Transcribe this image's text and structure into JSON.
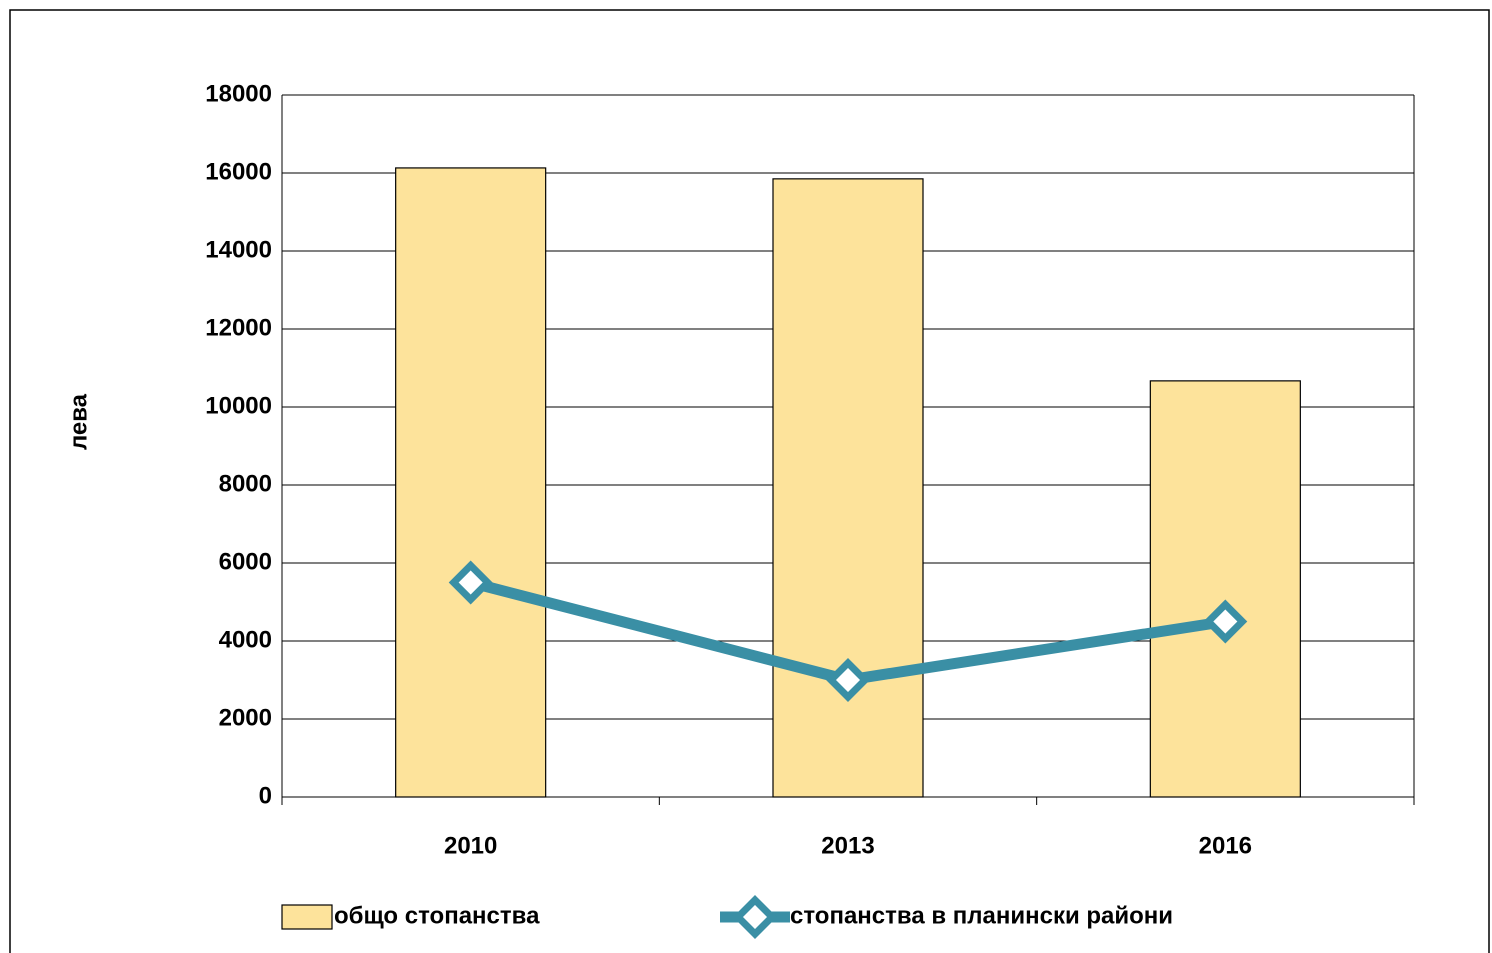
{
  "chart_data": {
    "type": "bar",
    "y_label": "лева",
    "categories": [
      "2010",
      "2013",
      "2016"
    ],
    "series": [
      {
        "name": "общо стопанства",
        "type": "bar",
        "color": "#fde39b",
        "values": [
          16130,
          15850,
          10670
        ]
      },
      {
        "name": "стопанства в планински райони",
        "type": "line",
        "color": "#3a8fa5",
        "values": [
          5500,
          3000,
          4500
        ]
      }
    ],
    "ylim": [
      0,
      18000
    ],
    "yticks": [
      0,
      2000,
      4000,
      6000,
      8000,
      10000,
      12000,
      14000,
      16000,
      18000
    ],
    "grid": true
  }
}
